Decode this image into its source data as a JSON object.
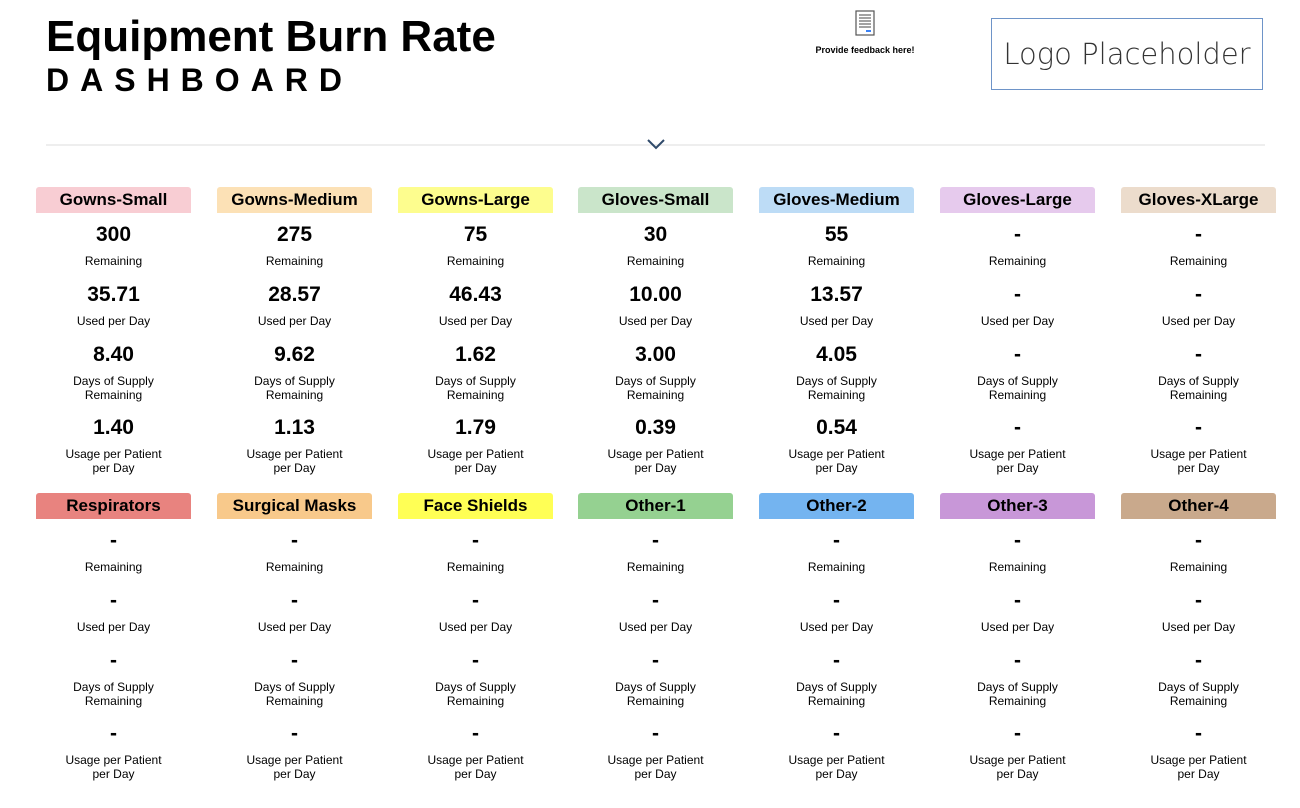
{
  "header": {
    "title": "Equipment Burn Rate",
    "subtitle": "DASHBOARD",
    "feedback_label": "Provide feedback here!",
    "feedback_icon": "document-icon",
    "logo_text": "Logo Placeholder",
    "expand_icon": "chevron-down-icon"
  },
  "labels": {
    "remaining": "Remaining",
    "used_per_day": "Used per Day",
    "days_of_supply": "Days of Supply Remaining",
    "usage_per_patient": "Usage per Patient per Day"
  },
  "items": [
    {
      "name": "Gowns-Small",
      "color": "#f8cdd3",
      "remaining": "300",
      "used_per_day": "35.71",
      "days_of_supply": "8.40",
      "usage_per_patient": "1.40"
    },
    {
      "name": "Gowns-Medium",
      "color": "#fce1b6",
      "remaining": "275",
      "used_per_day": "28.57",
      "days_of_supply": "9.62",
      "usage_per_patient": "1.13"
    },
    {
      "name": "Gowns-Large",
      "color": "#fdfd8e",
      "remaining": "75",
      "used_per_day": "46.43",
      "days_of_supply": "1.62",
      "usage_per_patient": "1.79"
    },
    {
      "name": "Gloves-Small",
      "color": "#cae5ca",
      "remaining": "30",
      "used_per_day": "10.00",
      "days_of_supply": "3.00",
      "usage_per_patient": "0.39"
    },
    {
      "name": "Gloves-Medium",
      "color": "#bddcf6",
      "remaining": "55",
      "used_per_day": "13.57",
      "days_of_supply": "4.05",
      "usage_per_patient": "0.54"
    },
    {
      "name": "Gloves-Large",
      "color": "#e6caed",
      "remaining": "-",
      "used_per_day": "-",
      "days_of_supply": "-",
      "usage_per_patient": "-"
    },
    {
      "name": "Gloves-XLarge",
      "color": "#ecdccc",
      "remaining": "-",
      "used_per_day": "-",
      "days_of_supply": "-",
      "usage_per_patient": "-"
    },
    {
      "name": "Respirators",
      "color": "#e8837f",
      "remaining": "-",
      "used_per_day": "-",
      "days_of_supply": "-",
      "usage_per_patient": "-"
    },
    {
      "name": "Surgical Masks",
      "color": "#f8c98b",
      "remaining": "-",
      "used_per_day": "-",
      "days_of_supply": "-",
      "usage_per_patient": "-"
    },
    {
      "name": "Face Shields",
      "color": "#ffff55",
      "remaining": "-",
      "used_per_day": "-",
      "days_of_supply": "-",
      "usage_per_patient": "-"
    },
    {
      "name": "Other-1",
      "color": "#95d191",
      "remaining": "-",
      "used_per_day": "-",
      "days_of_supply": "-",
      "usage_per_patient": "-"
    },
    {
      "name": "Other-2",
      "color": "#74b4f0",
      "remaining": "-",
      "used_per_day": "-",
      "days_of_supply": "-",
      "usage_per_patient": "-"
    },
    {
      "name": "Other-3",
      "color": "#c897d8",
      "remaining": "-",
      "used_per_day": "-",
      "days_of_supply": "-",
      "usage_per_patient": "-"
    },
    {
      "name": "Other-4",
      "color": "#c9a98c",
      "remaining": "-",
      "used_per_day": "-",
      "days_of_supply": "-",
      "usage_per_patient": "-"
    }
  ]
}
